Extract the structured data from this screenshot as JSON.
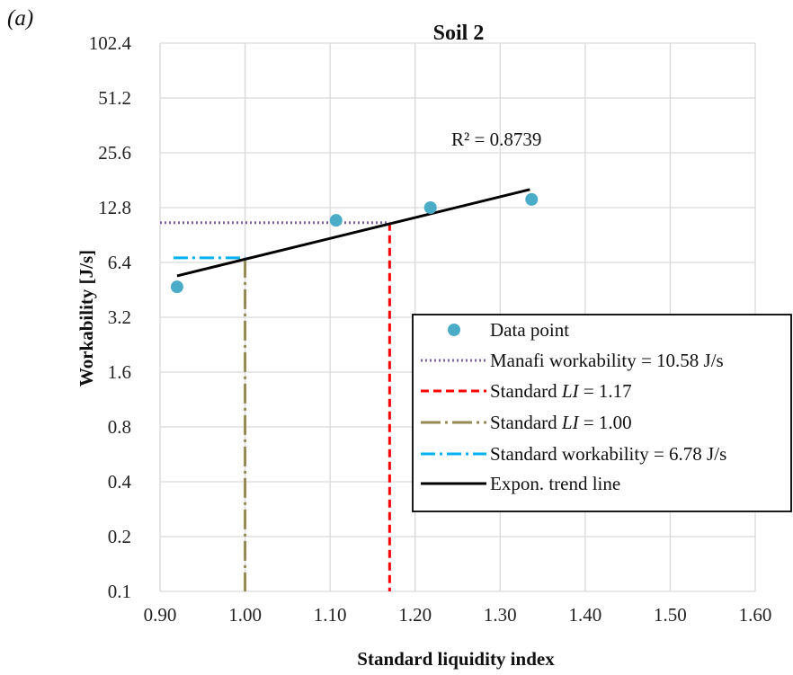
{
  "panel_label": "(a)",
  "chart_data": {
    "type": "scatter",
    "title": "Soil 2",
    "xlabel": "Standard liquidity index",
    "ylabel": "Workability [J/s]",
    "xlim": [
      0.9,
      1.6
    ],
    "ylim": [
      0.1,
      102.4
    ],
    "yscale": "log2",
    "x_ticks": [
      "0.90",
      "1.00",
      "1.10",
      "1.20",
      "1.30",
      "1.40",
      "1.50",
      "1.60"
    ],
    "y_ticks": [
      "0.1",
      "0.2",
      "0.4",
      "0.8",
      "1.6",
      "3.2",
      "6.4",
      "12.8",
      "25.6",
      "51.2",
      "102.4"
    ],
    "grid": true,
    "legend_position": "lower-right",
    "annotation": "R² = 0.8739",
    "points": [
      {
        "x": 0.92,
        "y": 4.7
      },
      {
        "x": 1.107,
        "y": 10.9
      },
      {
        "x": 1.218,
        "y": 12.8
      },
      {
        "x": 1.337,
        "y": 14.2
      }
    ],
    "trend": {
      "x_start": 0.92,
      "y_start": 5.4,
      "x_end": 1.335,
      "y_end": 16.1
    },
    "manafi_workability": 10.58,
    "standard_li_117": 1.17,
    "standard_li_100": 1.0,
    "standard_workability": 6.78,
    "series": [
      {
        "name": "Data point",
        "style": "marker",
        "color": "#4aacc6"
      },
      {
        "name": "Manafi workability = 10.58 J/s",
        "style": "dotted",
        "color": "#8064a2"
      },
      {
        "name_parts": [
          "Standard ",
          "LI",
          " = 1.17"
        ],
        "style": "dashed",
        "color": "#ff0000"
      },
      {
        "name_parts": [
          "Standard ",
          "LI",
          " = 1.00"
        ],
        "style": "dashdot-long",
        "color": "#948a54"
      },
      {
        "name": "Standard workability = 6.78 J/s",
        "style": "dashdot",
        "color": "#00b0f0"
      },
      {
        "name": "Expon. trend line",
        "style": "solid",
        "color": "#000000"
      }
    ]
  }
}
